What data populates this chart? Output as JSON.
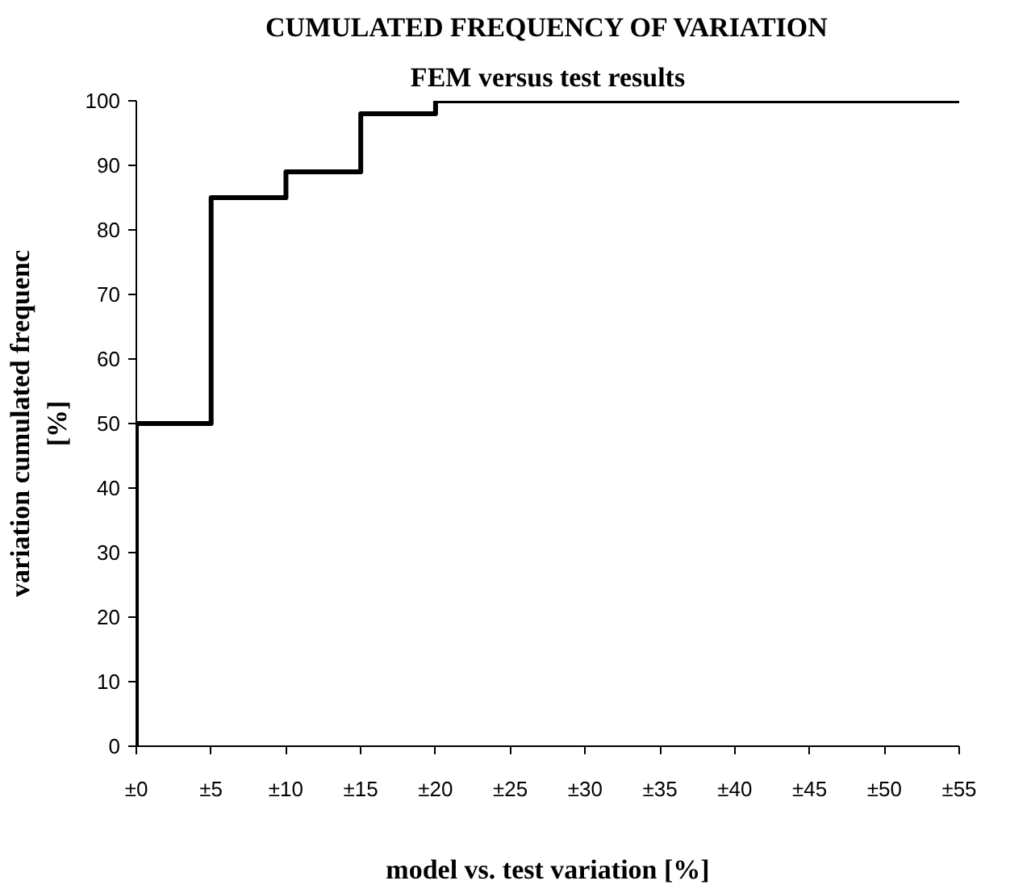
{
  "chart_data": {
    "type": "step",
    "title": "CUMULATED FREQUENCY OF VARIATION",
    "subtitle": "FEM versus test results",
    "xlabel": "model vs. test variation [%]",
    "ylabel": "variation cumulated frequenc\n[%]",
    "x": [
      0,
      0,
      5,
      10,
      15,
      20,
      55
    ],
    "series": [
      {
        "color": "#000000",
        "values": [
          0,
          50,
          85,
          89,
          98,
          100,
          100
        ]
      }
    ],
    "xlim": [
      0,
      55
    ],
    "ylim": [
      0,
      100
    ],
    "xticks": [
      {
        "value": 0,
        "label": "±0"
      },
      {
        "value": 5,
        "label": "±5"
      },
      {
        "value": 10,
        "label": "±10"
      },
      {
        "value": 15,
        "label": "±15"
      },
      {
        "value": 20,
        "label": "±20"
      },
      {
        "value": 25,
        "label": "±25"
      },
      {
        "value": 30,
        "label": "±30"
      },
      {
        "value": 35,
        "label": "±35"
      },
      {
        "value": 40,
        "label": "±40"
      },
      {
        "value": 45,
        "label": "±45"
      },
      {
        "value": 50,
        "label": "±50"
      },
      {
        "value": 55,
        "label": "±55"
      }
    ],
    "yticks": [
      0,
      10,
      20,
      30,
      40,
      50,
      60,
      70,
      80,
      90,
      100
    ],
    "grid": false,
    "marker": "none",
    "line_style": "solid"
  }
}
